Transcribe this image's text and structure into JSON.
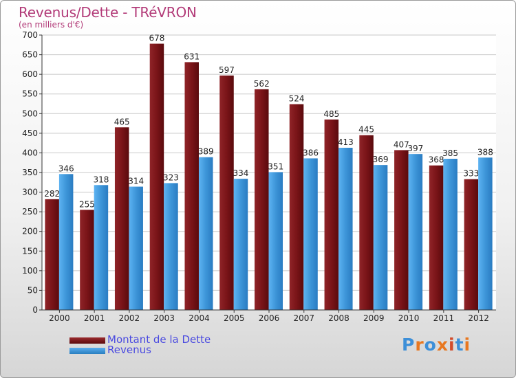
{
  "chart_data": {
    "type": "bar",
    "title": "Revenus/Dette - TRéVRON",
    "subtitle": "(en milliers d'€)",
    "xlabel": "",
    "ylabel": "",
    "ylim": [
      0,
      700
    ],
    "yticks": [
      "0",
      "50",
      "100",
      "150",
      "200",
      "250",
      "300",
      "350",
      "400",
      "450",
      "500",
      "550",
      "600",
      "650",
      "700"
    ],
    "grid": true,
    "legend_position": "bottom-left",
    "categories": [
      "2000",
      "2001",
      "2002",
      "2003",
      "2004",
      "2005",
      "2006",
      "2007",
      "2008",
      "2009",
      "2010",
      "2011",
      "2012"
    ],
    "series": [
      {
        "name": "Montant de la Dette",
        "color": "#7a1418",
        "values": [
          282,
          255,
          465,
          678,
          631,
          597,
          562,
          524,
          485,
          445,
          407,
          368,
          333
        ],
        "labels": [
          "282",
          "255",
          "465",
          "678",
          "631",
          "597",
          "562",
          "524",
          "485",
          "445",
          "407",
          "368",
          "333"
        ]
      },
      {
        "name": "Revenus",
        "color": "#3d95d8",
        "values": [
          346,
          318,
          314,
          323,
          389,
          334,
          351,
          386,
          413,
          369,
          397,
          385,
          388
        ],
        "labels": [
          "346",
          "318",
          "314",
          "323",
          "389",
          "334",
          "351",
          "386",
          "413",
          "369",
          "397",
          "385",
          "388"
        ]
      }
    ]
  },
  "legend": {
    "debt_label": "Montant de la Dette",
    "revenue_label": "Revenus"
  },
  "logo": {
    "text": "Proxiti",
    "colors": [
      "#3d8fd8",
      "#e8771f",
      "#3d8fd8",
      "#e8771f",
      "#d24b2a",
      "#3d8fd8",
      "#e8771f"
    ]
  }
}
